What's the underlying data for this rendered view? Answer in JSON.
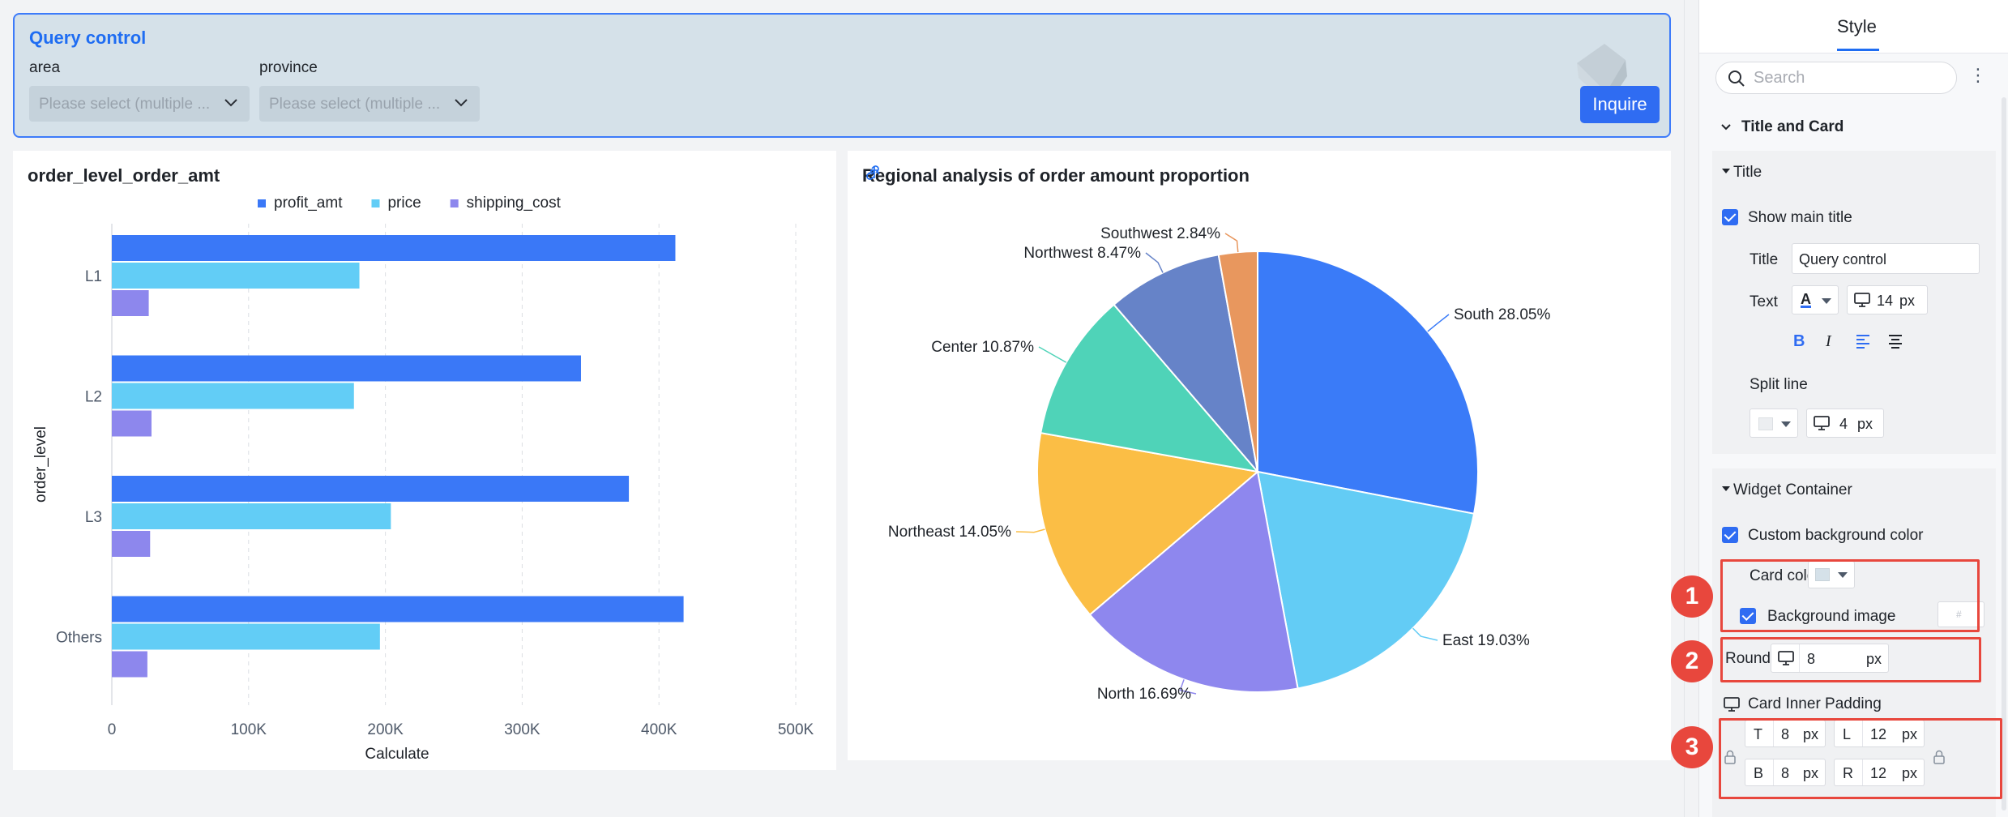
{
  "query_control": {
    "title": "Query control",
    "fields": [
      {
        "label": "area",
        "placeholder": "Please select (multiple ..."
      },
      {
        "label": "province",
        "placeholder": "Please select (multiple ..."
      }
    ],
    "inquire_label": "Inquire"
  },
  "bar_chart": {
    "title": "order_level_order_amt"
  },
  "pie_chart": {
    "title": "Regional analysis of order amount proportion"
  },
  "chart_data": [
    {
      "type": "bar",
      "orientation": "horizontal",
      "title": "order_level_order_amt",
      "categories": [
        "L1",
        "L2",
        "L3",
        "Others"
      ],
      "series": [
        {
          "name": "profit_amt",
          "color": "#3a78f7",
          "values": [
            412000,
            343000,
            378000,
            418000
          ]
        },
        {
          "name": "price",
          "color": "#62cdf6",
          "values": [
            181000,
            177000,
            204000,
            196000
          ]
        },
        {
          "name": "shipping_cost",
          "color": "#8d87ed",
          "values": [
            27000,
            29000,
            28000,
            26000
          ]
        }
      ],
      "xlabel": "Calculate",
      "ylabel": "order_level",
      "x_ticks": [
        "0",
        "100K",
        "200K",
        "300K",
        "400K",
        "500K"
      ],
      "xlim": [
        0,
        500000
      ],
      "legend": "top-center",
      "grid": true
    },
    {
      "type": "pie",
      "title": "Regional analysis of order amount proportion",
      "slices": [
        {
          "label": "South 28.05%",
          "value": 28.05,
          "color": "#3a7bf8"
        },
        {
          "label": "East 19.03%",
          "value": 19.03,
          "color": "#63ccf5"
        },
        {
          "label": "North 16.69%",
          "value": 16.69,
          "color": "#8e87ee"
        },
        {
          "label": "Northeast 14.05%",
          "value": 14.05,
          "color": "#fbbe45"
        },
        {
          "label": "Center 10.87%",
          "value": 10.87,
          "color": "#4fd3b8"
        },
        {
          "label": "Northwest 8.47%",
          "value": 8.47,
          "color": "#6683c8"
        },
        {
          "label": "Southwest 2.84%",
          "value": 2.84,
          "color": "#e8975e"
        }
      ]
    }
  ],
  "panel": {
    "tab": "Style",
    "search_placeholder": "Search",
    "section_title_card": "Title and Card",
    "title_group": {
      "heading": "Title",
      "show_main_title": "Show main title",
      "title_label": "Title",
      "title_value": "Query control",
      "text_label": "Text",
      "font_glyph": "A",
      "font_size": "14",
      "unit": "px",
      "bold": "B",
      "italic": "I",
      "split_line_label": "Split line",
      "split_line_size": "4"
    },
    "widget_container": {
      "heading": "Widget Container",
      "custom_bg": "Custom background color",
      "card_color": "Card color",
      "background_image": "Background image",
      "bg_image_value": "#",
      "round_label": "Round",
      "round_value": "8",
      "inner_padding": "Card Inner Padding",
      "pad_t_key": "T",
      "pad_t": "8",
      "pad_l_key": "L",
      "pad_l": "12",
      "pad_b_key": "B",
      "pad_b": "8",
      "pad_r_key": "R",
      "pad_r": "12"
    },
    "badges": [
      "1",
      "2",
      "3"
    ],
    "card_color_swatch": "#d5e1e9"
  }
}
